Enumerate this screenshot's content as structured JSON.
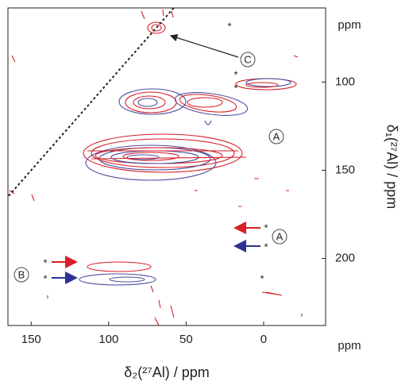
{
  "chart_data": {
    "type": "contour",
    "xlabel": "δ₂(²⁷Al) / ppm",
    "ylabel": "δ₁(²⁷Al) / ppm",
    "x_unit_label": "ppm",
    "y_unit_label": "ppm",
    "xlim": [
      165,
      -40
    ],
    "ylim": [
      58,
      238
    ],
    "xticks": [
      150,
      100,
      50,
      0
    ],
    "yticks": [
      100,
      150,
      200
    ],
    "annotations": [
      "C",
      "A",
      "A",
      "B",
      "*",
      "*",
      "*",
      "*",
      "*",
      "*",
      "*",
      "*"
    ]
  }
}
